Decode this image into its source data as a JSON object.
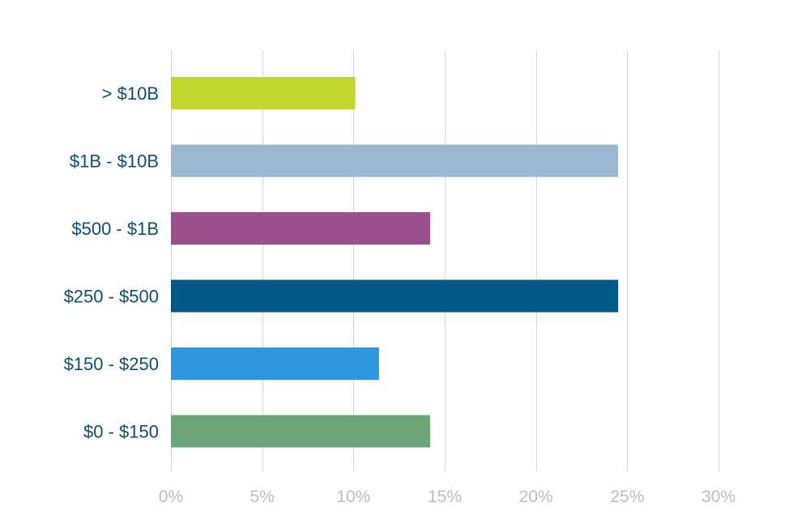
{
  "chart_data": {
    "type": "bar",
    "orientation": "horizontal",
    "title": "",
    "xlabel": "",
    "ylabel": "",
    "categories": [
      "> $10B",
      "$1B - $10B",
      "$500 - $1B",
      "$250 - $500",
      "$150 - $250",
      "$0 - $150"
    ],
    "values": [
      10.1,
      24.5,
      14.2,
      24.5,
      11.4,
      14.2
    ],
    "bar_colors": [
      "#c1d82f",
      "#9bb8d3",
      "#984f8b",
      "#005a85",
      "#2f96e0",
      "#6ba476"
    ],
    "xlim": [
      0,
      30
    ],
    "x_ticks": [
      0,
      5,
      10,
      15,
      20,
      25,
      30
    ],
    "x_tick_labels": [
      "0%",
      "5%",
      "10%",
      "15%",
      "20%",
      "25%",
      "30%"
    ],
    "grid": true,
    "legend": "none"
  }
}
